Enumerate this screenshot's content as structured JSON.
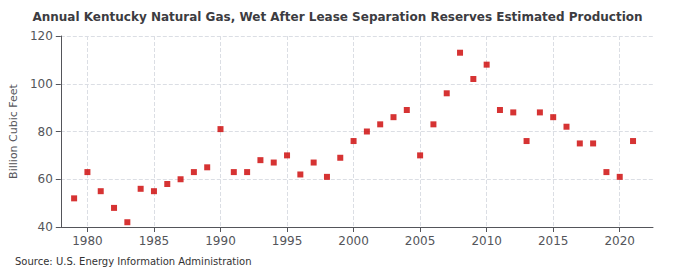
{
  "chart_data": {
    "type": "scatter",
    "title": "Annual Kentucky Natural Gas, Wet After Lease Separation Reserves Estimated Production",
    "ylabel": "Billion Cubic Feet",
    "source": "Source: U.S. Energy Information Administration",
    "x": [
      1979,
      1980,
      1981,
      1982,
      1983,
      1984,
      1985,
      1986,
      1987,
      1988,
      1989,
      1990,
      1991,
      1992,
      1993,
      1994,
      1995,
      1996,
      1997,
      1998,
      1999,
      2000,
      2001,
      2002,
      2003,
      2004,
      2005,
      2006,
      2007,
      2008,
      2009,
      2010,
      2011,
      2012,
      2013,
      2014,
      2015,
      2016,
      2017,
      2018,
      2019,
      2020,
      2021
    ],
    "values": [
      52,
      63,
      55,
      48,
      42,
      56,
      55,
      58,
      60,
      63,
      65,
      81,
      63,
      63,
      68,
      67,
      70,
      62,
      67,
      61,
      69,
      76,
      80,
      83,
      86,
      89,
      70,
      83,
      96,
      113,
      102,
      108,
      89,
      88,
      76,
      88,
      86,
      82,
      75,
      75,
      63,
      61,
      76
    ],
    "color": "#cc0000",
    "marker": "square",
    "xlim": [
      1978,
      2022.5
    ],
    "ylim": [
      40,
      120
    ],
    "xticks": [
      1980,
      1985,
      1990,
      1995,
      2000,
      2005,
      2010,
      2015,
      2020
    ],
    "yticks": [
      40,
      60,
      80,
      100,
      120
    ],
    "grid": true
  }
}
